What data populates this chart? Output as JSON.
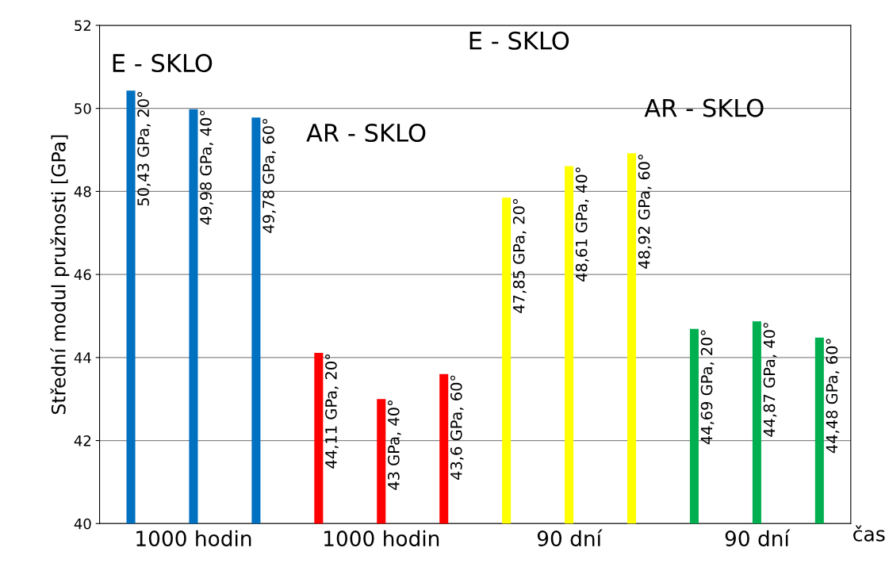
{
  "chart_data": {
    "type": "bar",
    "ylabel": "Střední modul pružnosti [GPa]",
    "xlabel": "čas",
    "categories": [
      null,
      "1000 hodin",
      null,
      null,
      "1000 hodin",
      null,
      null,
      "90 dní",
      null,
      null,
      "90 dní",
      null
    ],
    "values": [
      50.43,
      49.98,
      49.78,
      44.11,
      43,
      43.6,
      47.85,
      48.61,
      48.92,
      44.69,
      44.87,
      44.48
    ],
    "colors": [
      "#0070c0",
      "#0070c0",
      "#0070c0",
      "#ff0000",
      "#ff0000",
      "#ff0000",
      "#ffff00",
      "#ffff00",
      "#ffff00",
      "#00b050",
      "#00b050",
      "#00b050"
    ],
    "value_labels": [
      "50,43 GPa, 20°",
      "49,98 GPa, 40°",
      "49,78 GPa, 60°",
      "44,11 GPa, 20°",
      "43 GPa, 40°",
      "43,6 GPa, 60°",
      "47,85 GPa, 20°",
      "48,61 GPa, 40°",
      "48,92 GPa, 60°",
      "44,69 GPa, 20°",
      "44,87 GPa, 40°",
      "44,48 GPa, 60°"
    ],
    "annotations": [
      "E - SKLO",
      "AR - SKLO",
      "E - SKLO",
      "AR - SKLO"
    ],
    "ylim": [
      40,
      52
    ],
    "yticks": [
      40,
      42,
      44,
      46,
      48,
      50,
      52
    ],
    "grid": "y"
  }
}
